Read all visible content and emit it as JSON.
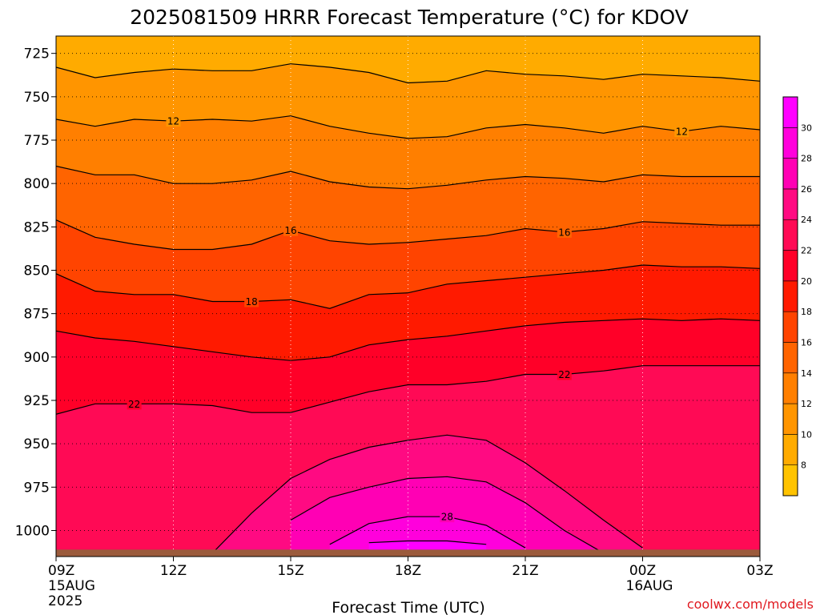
{
  "chart_data": {
    "type": "area",
    "title": "2025081509 HRRR Forecast Temperature (°C) for KDOV",
    "xlabel": "Forecast Time (UTC)",
    "ylabel": "",
    "y_axis": "pressure (hPa), inverted",
    "ylim": [
      1015,
      715
    ],
    "y_ticks": [
      725,
      750,
      775,
      800,
      825,
      850,
      875,
      900,
      925,
      950,
      975,
      1000
    ],
    "x_ticks": [
      {
        "label": "09Z",
        "sub": [
          "15AUG",
          "2025"
        ]
      },
      {
        "label": "12Z",
        "sub": []
      },
      {
        "label": "15Z",
        "sub": []
      },
      {
        "label": "18Z",
        "sub": []
      },
      {
        "label": "21Z",
        "sub": []
      },
      {
        "label": "00Z",
        "sub": [
          "16AUG"
        ]
      },
      {
        "label": "03Z",
        "sub": []
      }
    ],
    "grid": true,
    "colorbar": {
      "placement": "right",
      "levels": [
        8,
        10,
        12,
        14,
        16,
        18,
        20,
        22,
        24,
        26,
        28,
        30
      ],
      "colors": [
        "#ffc300",
        "#ffab00",
        "#ff9500",
        "#ff7f00",
        "#ff6400",
        "#ff4400",
        "#ff1a00",
        "#ff0028",
        "#ff0a55",
        "#ff0a82",
        "#ff00b4",
        "#ff00dc",
        "#ff00ff"
      ]
    },
    "hours": [
      9,
      10,
      11,
      12,
      13,
      14,
      15,
      16,
      17,
      18,
      19,
      20,
      21,
      22,
      23,
      24,
      25,
      26,
      27
    ],
    "isotherms": [
      {
        "value": 10,
        "p": [
          733,
          739,
          736,
          734,
          735,
          735,
          731,
          733,
          736,
          742,
          741,
          735,
          737,
          738,
          740,
          737,
          738,
          739,
          741
        ]
      },
      {
        "value": 12,
        "p": [
          763,
          767,
          763,
          764,
          763,
          764,
          761,
          767,
          771,
          774,
          773,
          768,
          766,
          768,
          771,
          767,
          770,
          767,
          769
        ]
      },
      {
        "value": 14,
        "p": [
          790,
          795,
          795,
          800,
          800,
          798,
          793,
          799,
          802,
          803,
          801,
          798,
          796,
          797,
          799,
          795,
          796,
          796,
          796
        ]
      },
      {
        "value": 16,
        "p": [
          821,
          831,
          835,
          838,
          838,
          835,
          827,
          833,
          835,
          834,
          832,
          830,
          826,
          828,
          826,
          822,
          823,
          824,
          824
        ]
      },
      {
        "value": 18,
        "p": [
          852,
          862,
          864,
          864,
          868,
          868,
          867,
          872,
          864,
          863,
          858,
          856,
          854,
          852,
          850,
          847,
          848,
          848,
          849
        ]
      },
      {
        "value": 20,
        "p": [
          885,
          889,
          891,
          894,
          897,
          900,
          902,
          900,
          893,
          890,
          888,
          885,
          882,
          880,
          879,
          878,
          879,
          878,
          879
        ]
      },
      {
        "value": 22,
        "p": [
          933,
          927,
          927,
          927,
          928,
          932,
          932,
          926,
          920,
          916,
          916,
          914,
          910,
          910,
          908,
          905,
          905,
          905,
          905
        ]
      },
      {
        "value": 24,
        "p": [
          null,
          null,
          null,
          null,
          1013,
          990,
          970,
          959,
          952,
          948,
          945,
          948,
          961,
          977,
          994,
          1010,
          null,
          null,
          null
        ]
      },
      {
        "value": 26,
        "p": [
          null,
          null,
          null,
          null,
          null,
          null,
          994,
          981,
          975,
          970,
          969,
          972,
          984,
          1000,
          1013,
          null,
          null,
          null,
          null
        ]
      },
      {
        "value": 28,
        "p": [
          null,
          null,
          null,
          null,
          null,
          null,
          null,
          1008,
          996,
          992,
          992,
          997,
          1010,
          null,
          null,
          null,
          null,
          null,
          null
        ]
      },
      {
        "value": 30,
        "p": [
          null,
          null,
          null,
          null,
          null,
          null,
          null,
          null,
          1007,
          1006,
          1006,
          1008,
          null,
          null,
          null,
          null,
          null,
          null,
          null
        ]
      }
    ],
    "contour_labels": [
      {
        "value": "12",
        "hour": 12.0,
        "p": 764
      },
      {
        "value": "12",
        "hour": 25.0,
        "p": 770
      },
      {
        "value": "16",
        "hour": 15.0,
        "p": 827
      },
      {
        "value": "16",
        "hour": 22.0,
        "p": 828
      },
      {
        "value": "18",
        "hour": 14.0,
        "p": 868
      },
      {
        "value": "22",
        "hour": 11.0,
        "p": 927
      },
      {
        "value": "22",
        "hour": 22.0,
        "p": 910
      },
      {
        "value": "28",
        "hour": 19.0,
        "p": 992
      }
    ],
    "surface": {
      "color": "#9b5b3c",
      "p_top": 1011
    }
  },
  "credit": "coolwx.com/models"
}
